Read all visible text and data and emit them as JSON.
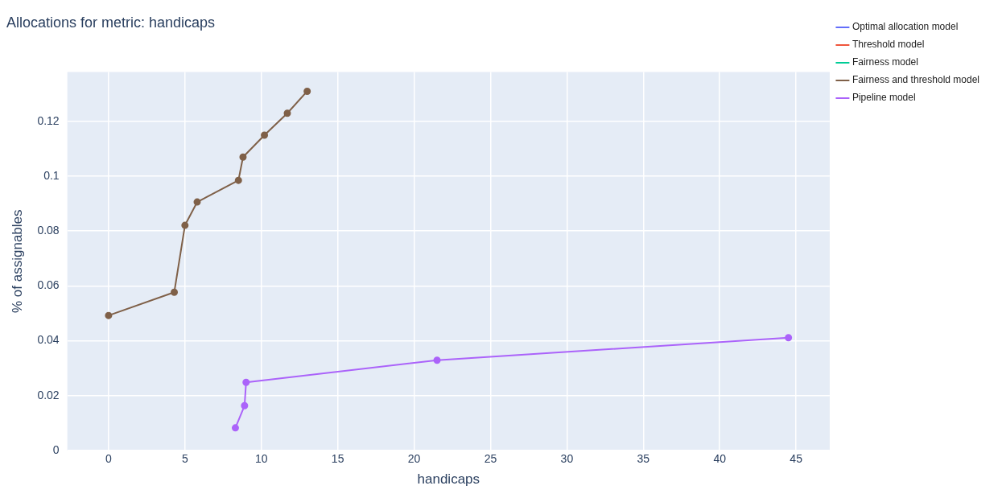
{
  "chart_data": {
    "type": "line",
    "title": "Allocations for metric: handicaps",
    "xlabel": "handicaps",
    "ylabel": "% of assignables",
    "xlim": [
      -2.7,
      47.2
    ],
    "xticks": [
      0,
      5,
      10,
      15,
      20,
      25,
      30,
      35,
      40,
      45
    ],
    "ylim": [
      0,
      0.138
    ],
    "yticks": [
      0,
      0.02,
      0.04,
      0.06,
      0.08,
      0.1,
      0.12
    ],
    "grid": true,
    "legend": "top right",
    "marker": "circle",
    "line_style": "solid",
    "series": [
      {
        "name": "Optimal allocation model",
        "color": "#636efa"
      },
      {
        "name": "Threshold model",
        "color": "#ef553b"
      },
      {
        "name": "Fairness model",
        "color": "#00cc96"
      },
      {
        "name": "Fairness and threshold model",
        "color": "#7f6048",
        "x": [
          0,
          4.3,
          5,
          5.8,
          8.5,
          8.8,
          10.2,
          11.7,
          13
        ],
        "values": [
          0.0492,
          0.0577,
          0.0821,
          0.0906,
          0.0985,
          0.107,
          0.115,
          0.123,
          0.131
        ]
      },
      {
        "name": "Pipeline model",
        "color": "#ab63fa",
        "x": [
          8.3,
          8.9,
          9,
          21.5,
          44.5
        ],
        "values": [
          0.0082,
          0.0163,
          0.0248,
          0.0329,
          0.0411
        ]
      }
    ]
  }
}
